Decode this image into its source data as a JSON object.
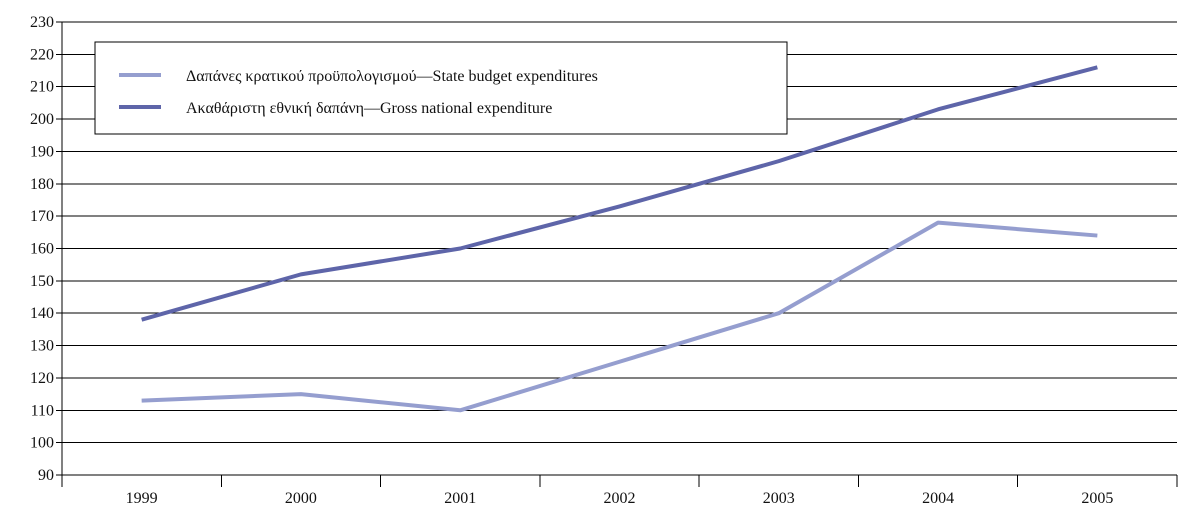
{
  "chart_data": {
    "type": "line",
    "categories": [
      "1999",
      "2000",
      "2001",
      "2002",
      "2003",
      "2004",
      "2005"
    ],
    "y_ticks": [
      "90",
      "100",
      "110",
      "120",
      "130",
      "140",
      "150",
      "160",
      "170",
      "180",
      "190",
      "200",
      "210",
      "220",
      "230"
    ],
    "ylim": [
      90,
      230
    ],
    "grid": true,
    "legend_position": "top-left",
    "series": [
      {
        "name": "Δαπάνες κρατικού προϋπολογισμού—State budget expenditures",
        "values": [
          113,
          115,
          110,
          125,
          140,
          168,
          164
        ],
        "color": "#959ECF"
      },
      {
        "name": "Ακαθάριστη εθνική δαπάνη—Gross national expenditure",
        "values": [
          138,
          152,
          160,
          173,
          187,
          203,
          216
        ],
        "color": "#5E65A9"
      }
    ]
  }
}
